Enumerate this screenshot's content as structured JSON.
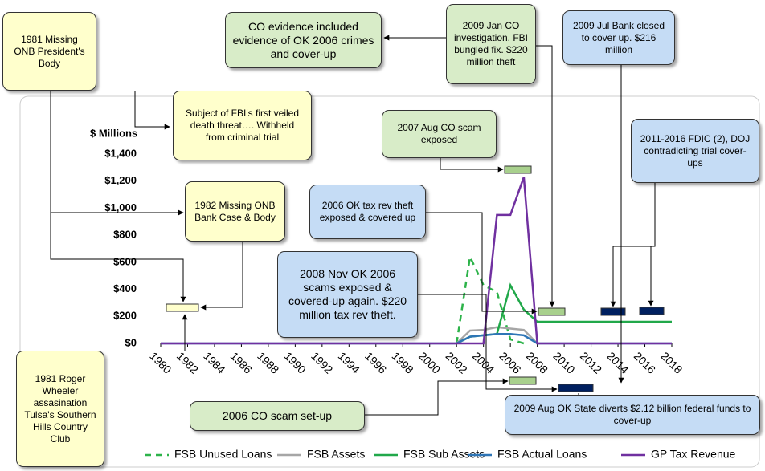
{
  "chart_data": {
    "type": "line",
    "y_label": "$ Millions",
    "x": [
      1980,
      1981,
      1982,
      1983,
      1984,
      1985,
      1986,
      1987,
      1988,
      1989,
      1990,
      1991,
      1992,
      1993,
      1994,
      1995,
      1996,
      1997,
      1998,
      1999,
      2000,
      2001,
      2002,
      2003,
      2004,
      2005,
      2006,
      2007,
      2008,
      2009,
      2010,
      2011,
      2012,
      2013,
      2014,
      2015,
      2016,
      2017,
      2018
    ],
    "xlim": [
      1980,
      2018
    ],
    "xticks": [
      1980,
      1982,
      1984,
      1986,
      1988,
      1990,
      1992,
      1994,
      1996,
      1998,
      2000,
      2002,
      2004,
      2006,
      2008,
      2010,
      2012,
      2014,
      2016,
      2018
    ],
    "ylim": [
      0,
      1400
    ],
    "yticks": [
      {
        "value": 0,
        "label": "$0"
      },
      {
        "value": 200,
        "label": "$200"
      },
      {
        "value": 400,
        "label": "$400"
      },
      {
        "value": 600,
        "label": "$600"
      },
      {
        "value": 800,
        "label": "$800"
      },
      {
        "value": 1000,
        "label": "$1,000"
      },
      {
        "value": 1200,
        "label": "$1,200"
      },
      {
        "value": 1400,
        "label": "$1,400"
      }
    ],
    "series": [
      {
        "name": "FSB Unused Loans",
        "color": "#2db34a",
        "dashed": true,
        "values": [
          null,
          null,
          null,
          null,
          null,
          null,
          null,
          null,
          null,
          null,
          null,
          null,
          null,
          null,
          null,
          null,
          null,
          null,
          null,
          null,
          null,
          null,
          0,
          640,
          430,
          380,
          30,
          0,
          null,
          null,
          null,
          null,
          null,
          null,
          null,
          null,
          null,
          null,
          null
        ]
      },
      {
        "name": "FSB Assets",
        "color": "#a6a6a6",
        "values": [
          null,
          null,
          null,
          null,
          null,
          null,
          null,
          null,
          null,
          null,
          null,
          null,
          null,
          null,
          null,
          null,
          null,
          null,
          null,
          null,
          null,
          null,
          0,
          95,
          100,
          120,
          110,
          100,
          0,
          null,
          null,
          null,
          null,
          null,
          null,
          null,
          null,
          null,
          null
        ]
      },
      {
        "name": "FSB Sub Assets",
        "color": "#21a84a",
        "values": [
          null,
          null,
          null,
          null,
          null,
          null,
          null,
          null,
          null,
          null,
          null,
          null,
          null,
          null,
          null,
          null,
          null,
          null,
          null,
          null,
          null,
          null,
          0,
          50,
          60,
          70,
          430,
          250,
          160,
          160,
          160,
          160,
          160,
          160,
          160,
          160,
          160,
          160,
          160
        ]
      },
      {
        "name": "FSB Actual Loans",
        "color": "#2e75b6",
        "values": [
          0,
          0,
          0,
          0,
          0,
          0,
          0,
          0,
          0,
          0,
          0,
          0,
          0,
          0,
          0,
          0,
          0,
          0,
          0,
          0,
          0,
          0,
          0,
          50,
          60,
          70,
          70,
          60,
          0,
          0,
          0,
          0,
          0,
          0,
          0,
          0,
          0,
          0,
          0
        ]
      },
      {
        "name": "GP Tax Revenue",
        "color": "#7030a0",
        "values": [
          0,
          0,
          0,
          0,
          0,
          0,
          0,
          0,
          0,
          0,
          0,
          0,
          0,
          0,
          0,
          0,
          0,
          0,
          0,
          0,
          0,
          0,
          0,
          0,
          0,
          950,
          950,
          1230,
          0,
          0,
          0,
          0,
          0,
          0,
          0,
          0,
          0,
          0,
          0
        ]
      }
    ],
    "annotations": [
      "1981 Missing ONB President's Body",
      "CO evidence included evidence of OK 2006 crimes and cover-up",
      "2009 Jan CO investigation. FBI bungled fix. $220 million theft",
      "2009 Jul Bank closed to cover up. $216 million",
      "Subject of FBI's first veiled death threat…. Withheld from criminal trial",
      "2007 Aug CO scam exposed",
      "2011-2016 FDIC (2), DOJ contradicting trial cover-ups",
      "1982 Missing ONB Bank Case & Body",
      "2006 OK tax rev theft exposed & covered up",
      "2008 Nov OK 2006 scams exposed & covered-up again. $220 million tax rev theft.",
      "1981 Roger Wheeler assasination Tulsa's Southern Hills Country Club",
      "2006 CO scam set-up",
      "2009 Aug OK State diverts $2.12 billion federal funds to cover-up"
    ]
  }
}
